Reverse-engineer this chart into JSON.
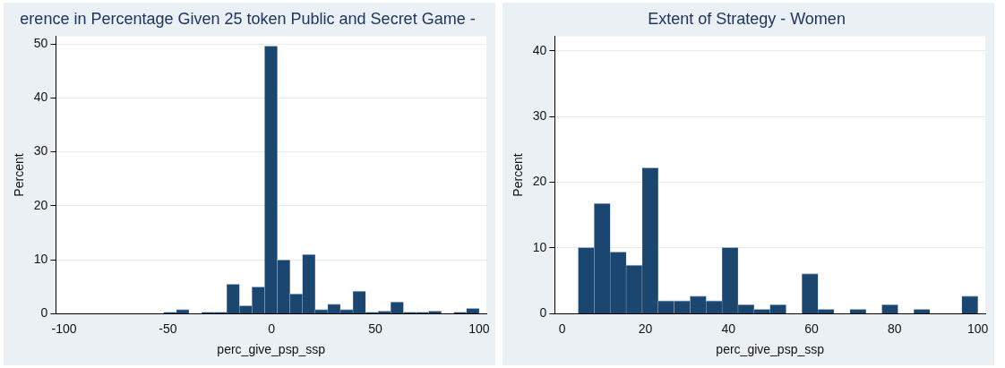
{
  "chart_data": [
    {
      "type": "histogram",
      "title": "erence in Percentage Given 25 token Public and Secret Game -",
      "xlabel": "perc_give_psp_ssp",
      "ylabel": "Percent",
      "color": "#1b466f",
      "grid": "y",
      "xlim": [
        -104,
        103.5
      ],
      "ylim": [
        0,
        51.4
      ],
      "xticks": [
        -100,
        -50,
        0,
        50,
        100
      ],
      "yticks": [
        0,
        10,
        20,
        30,
        40,
        50
      ],
      "bins": [
        -52,
        -45.92,
        -39.84,
        -33.76,
        -27.68,
        -21.6,
        -15.52,
        -9.44,
        -3.36,
        2.72,
        8.8,
        14.88,
        20.96,
        27.04,
        33.12,
        39.2,
        45.28,
        51.36,
        57.44,
        63.52,
        69.6,
        75.68,
        81.76,
        87.84,
        93.92,
        100
      ],
      "values": [
        0.3,
        0.8,
        0,
        0.3,
        0.3,
        5.5,
        1.5,
        5.0,
        49.6,
        10.0,
        3.7,
        11.0,
        0.8,
        1.8,
        0.8,
        4.2,
        0.3,
        0.5,
        2.2,
        0.3,
        0.3,
        0.5,
        0,
        0.3,
        1.0
      ]
    },
    {
      "type": "histogram",
      "title": "Extent of Strategy - Women",
      "xlabel": "perc_give_psp_ssp",
      "ylabel": "Percent",
      "color": "#1b466f",
      "grid": "y",
      "xlim": [
        -1.8,
        101.8
      ],
      "ylim": [
        0,
        42.2
      ],
      "xticks": [
        0,
        20,
        40,
        60,
        80,
        100
      ],
      "yticks": [
        0,
        10,
        20,
        30,
        40
      ],
      "bins": [
        3.85,
        7.69,
        11.54,
        15.38,
        19.23,
        23.08,
        26.92,
        30.77,
        34.62,
        38.46,
        42.31,
        46.15,
        50,
        53.85,
        57.69,
        61.54,
        65.38,
        69.23,
        73.08,
        76.92,
        80.77,
        84.62,
        88.46,
        92.31,
        96.15,
        100
      ],
      "values": [
        10.1,
        16.8,
        9.4,
        7.4,
        22.2,
        2.0,
        2.0,
        2.7,
        2.0,
        10.1,
        1.4,
        0.7,
        1.4,
        0,
        6.1,
        0.7,
        0,
        0.7,
        0,
        1.4,
        0,
        0.7,
        0,
        0,
        2.7
      ]
    }
  ]
}
